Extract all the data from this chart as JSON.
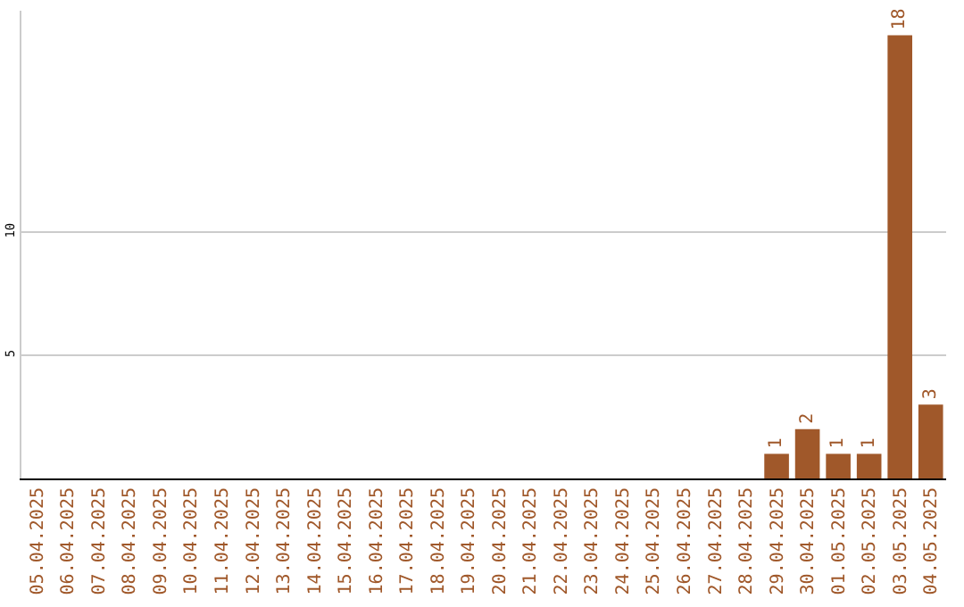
{
  "chart_data": {
    "type": "bar",
    "categories": [
      "05.04.2025",
      "06.04.2025",
      "07.04.2025",
      "08.04.2025",
      "09.04.2025",
      "10.04.2025",
      "11.04.2025",
      "12.04.2025",
      "13.04.2025",
      "14.04.2025",
      "15.04.2025",
      "16.04.2025",
      "17.04.2025",
      "18.04.2025",
      "19.04.2025",
      "20.04.2025",
      "21.04.2025",
      "22.04.2025",
      "23.04.2025",
      "24.04.2025",
      "25.04.2025",
      "26.04.2025",
      "27.04.2025",
      "28.04.2025",
      "29.04.2025",
      "30.04.2025",
      "01.05.2025",
      "02.05.2025",
      "03.05.2025",
      "04.05.2025"
    ],
    "values": [
      0,
      0,
      0,
      0,
      0,
      0,
      0,
      0,
      0,
      0,
      0,
      0,
      0,
      0,
      0,
      0,
      0,
      0,
      0,
      0,
      0,
      0,
      0,
      0,
      1,
      2,
      1,
      1,
      18,
      3
    ],
    "value_labels": [
      null,
      null,
      null,
      null,
      null,
      null,
      null,
      null,
      null,
      null,
      null,
      null,
      null,
      null,
      null,
      null,
      null,
      null,
      null,
      null,
      null,
      null,
      null,
      null,
      "1",
      "2",
      "1",
      "1",
      "18",
      "3"
    ],
    "color": "#a0582a",
    "ylim": [
      0,
      19
    ],
    "yticks": [
      5,
      10
    ],
    "grid": "y"
  }
}
